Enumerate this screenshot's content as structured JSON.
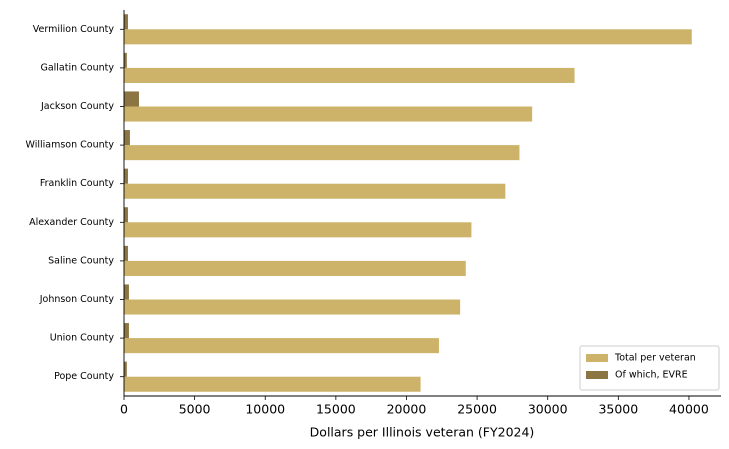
{
  "chart_data": {
    "type": "barh",
    "xlabel": "Dollars per Illinois veteran (FY2024)",
    "categories": [
      "Vermilion County",
      "Gallatin County",
      "Jackson County",
      "Williamson County",
      "Franklin County",
      "Alexander County",
      "Saline County",
      "Johnson County",
      "Union County",
      "Pope County"
    ],
    "series": [
      {
        "name": "Total per veteran",
        "color": "#cdb36a",
        "values": [
          40200,
          31900,
          28900,
          28000,
          27000,
          24600,
          24200,
          23800,
          22300,
          21000
        ]
      },
      {
        "name": "Of which, EVRE",
        "color": "#8b7542",
        "values": [
          280,
          200,
          1060,
          420,
          280,
          280,
          280,
          350,
          350,
          200
        ]
      }
    ],
    "xlim": [
      0,
      42270
    ],
    "xticks": [
      0,
      5000,
      10000,
      15000,
      20000,
      25000,
      30000,
      35000,
      40000
    ],
    "legend": "lower right",
    "grid": false
  }
}
